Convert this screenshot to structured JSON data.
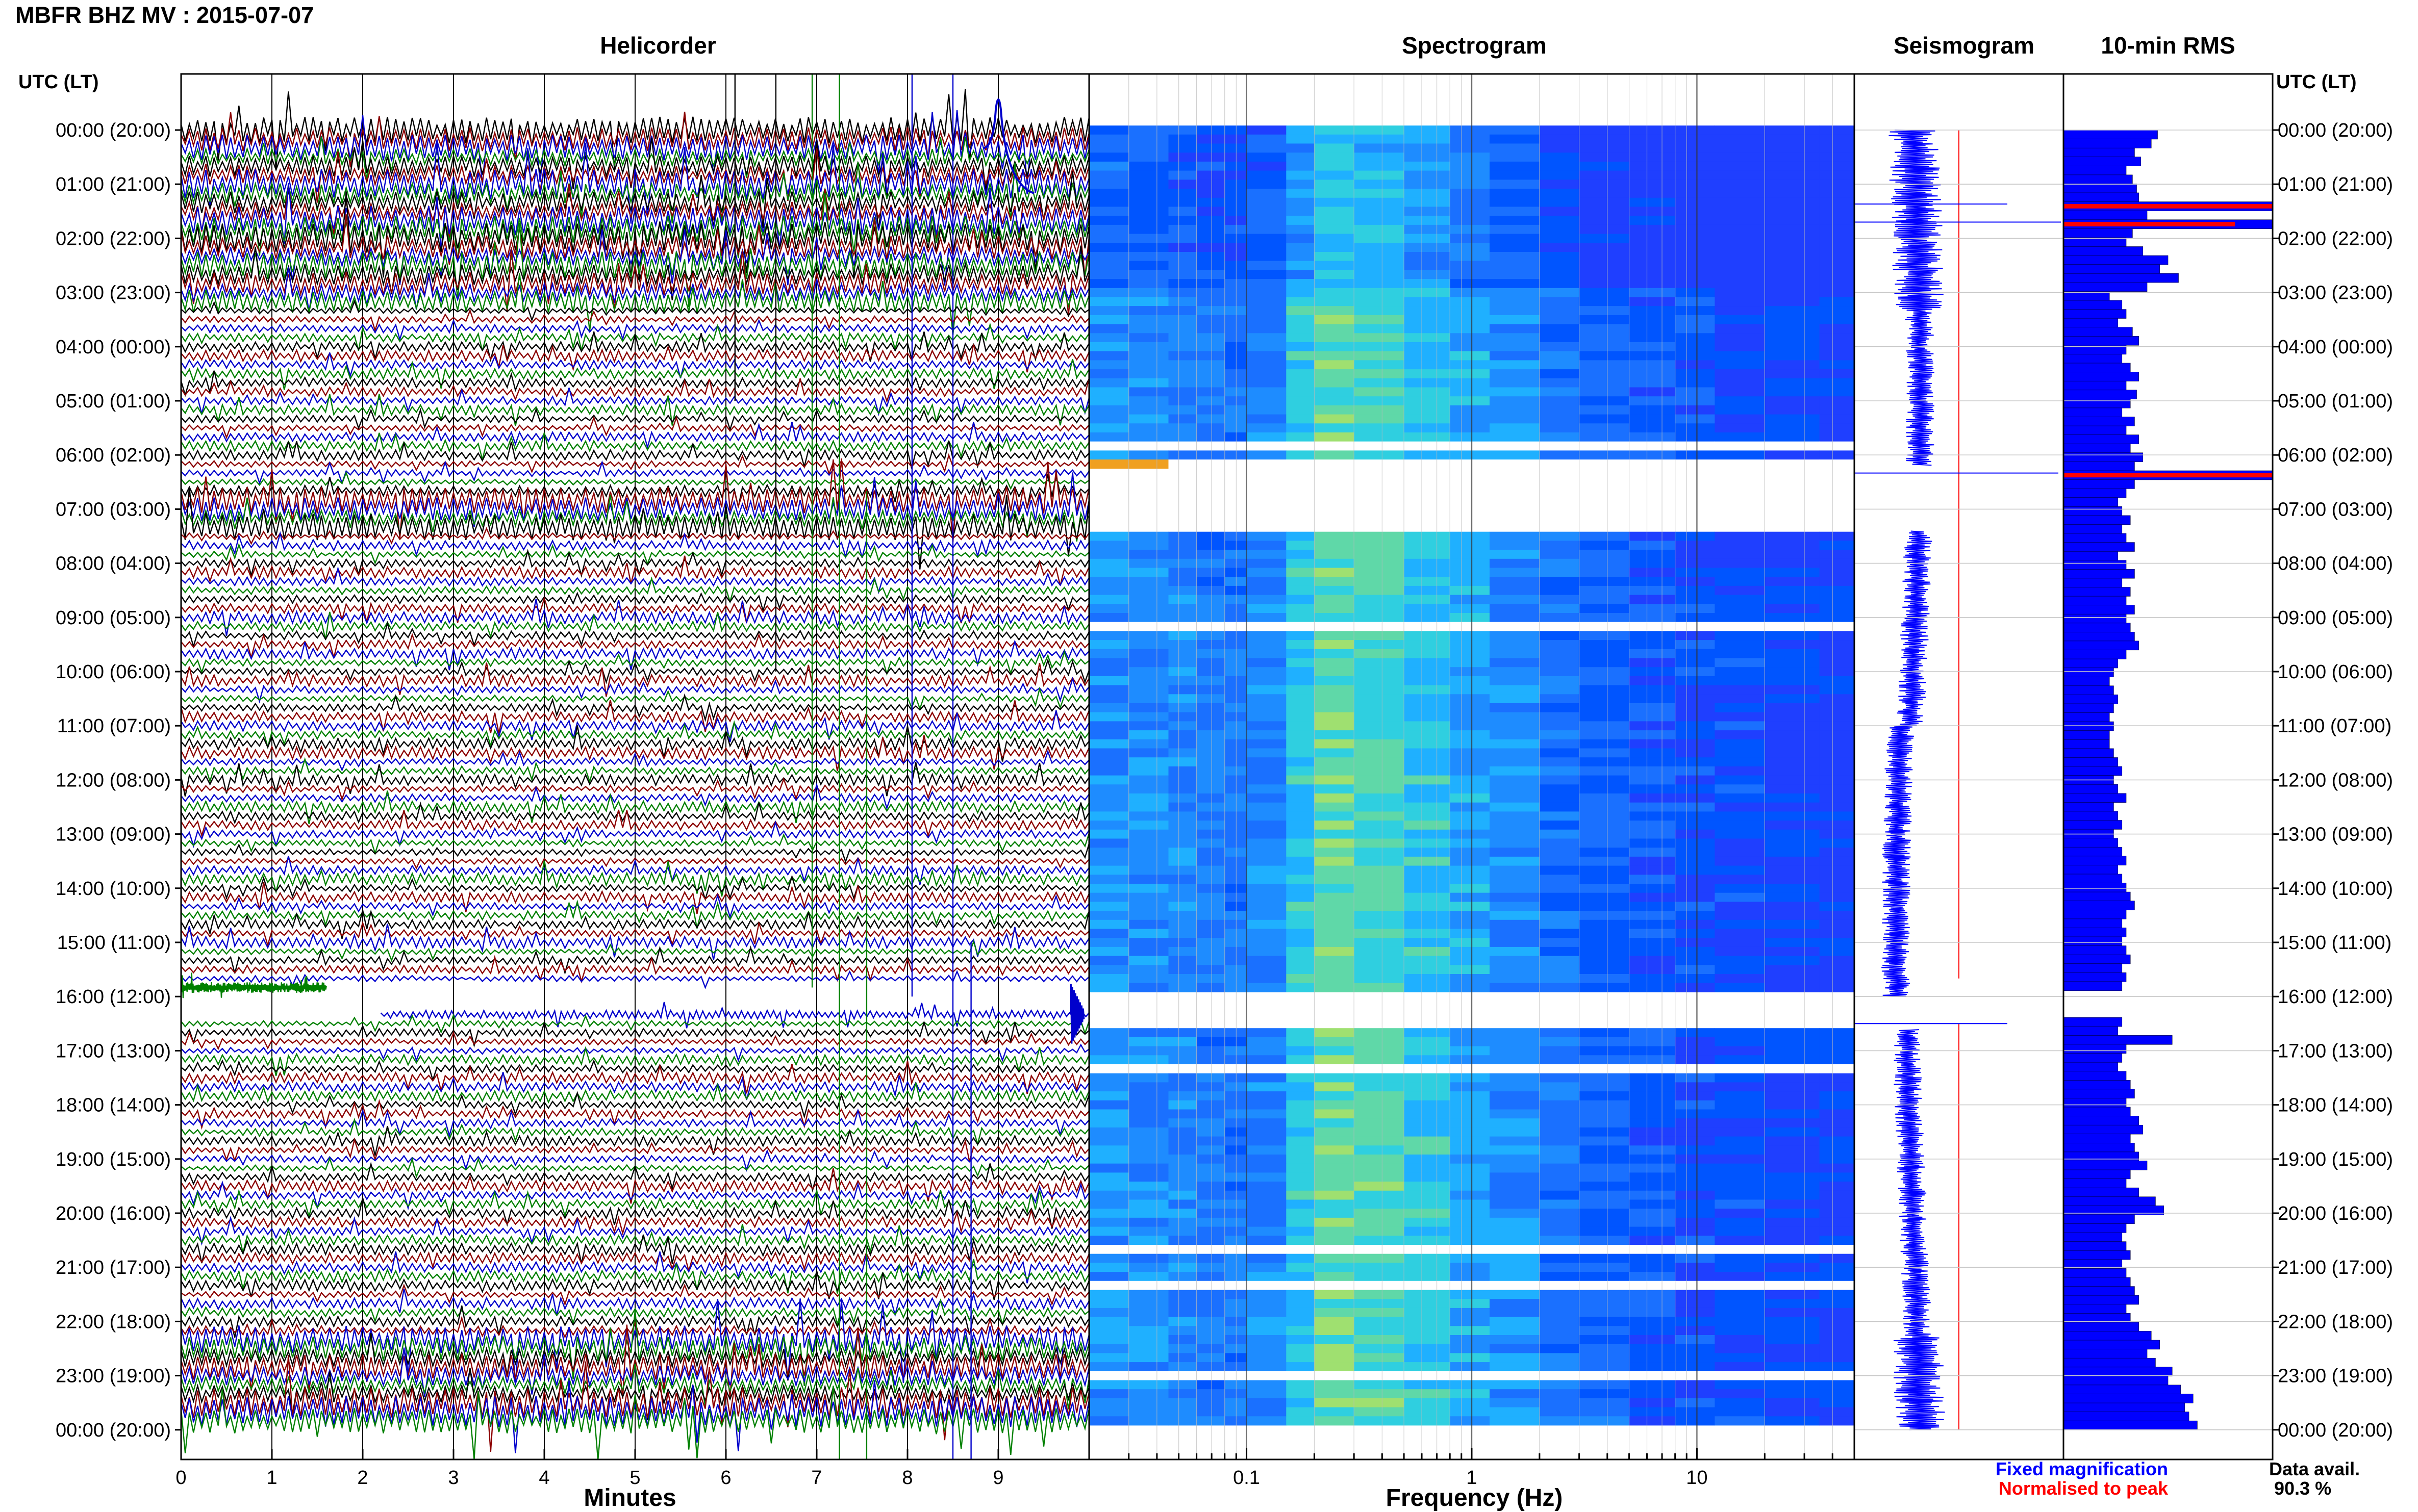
{
  "title": "MBFR BHZ MV : 2015-07-07",
  "panels": {
    "helicorder": "Helicorder",
    "spectrogram": "Spectrogram",
    "seismogram": "Seismogram",
    "rms": "10-min RMS"
  },
  "utc_header_left": "UTC (LT)",
  "utc_header_right": "UTC (LT)",
  "x_label_helicorder": "Minutes",
  "x_label_spectrogram": "Frequency (Hz)",
  "legend": {
    "fixed": "Fixed magnification",
    "normalised": "Normalised to peak",
    "fixed_color": "#0000ff",
    "normalised_color": "#ff0000"
  },
  "data_avail_label": "Data avail.",
  "data_avail_value": "90.3 %",
  "colors": {
    "trace_colors": [
      "#000000",
      "#8b0000",
      "#0000cc",
      "#008000"
    ],
    "rms_bar": "#0000ff",
    "rms_bar_peak": "#ff0000"
  },
  "chart_data": [
    {
      "type": "line",
      "title": "Helicorder",
      "xlabel": "Minutes",
      "x_ticks": [
        "0",
        "1",
        "2",
        "3",
        "4",
        "5",
        "6",
        "7",
        "8",
        "9"
      ],
      "xlim": [
        0,
        10
      ],
      "row_minutes": 10,
      "gap_rows": [
        [
          96,
          97
        ]
      ],
      "y_ticks": [
        "00:00 (20:00)",
        "01:00 (21:00)",
        "02:00 (22:00)",
        "03:00 (23:00)",
        "04:00 (00:00)",
        "05:00 (01:00)",
        "06:00 (02:00)",
        "07:00 (03:00)",
        "08:00 (04:00)",
        "09:00 (05:00)",
        "10:00 (06:00)",
        "11:00 (07:00)",
        "12:00 (08:00)",
        "13:00 (09:00)",
        "14:00 (10:00)",
        "15:00 (11:00)",
        "16:00 (12:00)",
        "17:00 (13:00)",
        "18:00 (14:00)",
        "19:00 (15:00)",
        "20:00 (16:00)",
        "21:00 (17:00)",
        "22:00 (18:00)",
        "23:00 (19:00)",
        "00:00 (20:00)"
      ]
    },
    {
      "type": "heatmap",
      "title": "Spectrogram",
      "xlabel": "Frequency (Hz)",
      "x_scale": "log",
      "x_ticks": [
        "0.1",
        "1",
        "10"
      ],
      "xlim": [
        0.02,
        50
      ],
      "gaps_utc_hours": [
        [
          6.2,
          7.4
        ],
        [
          16.0,
          16.6
        ]
      ]
    },
    {
      "type": "line",
      "title": "Seismogram",
      "series": [
        {
          "name": "Fixed magnification"
        },
        {
          "name": "Normalised to peak"
        }
      ]
    },
    {
      "type": "bar",
      "title": "10-min RMS",
      "orientation": "horizontal",
      "bin_minutes": 10,
      "values": [
        0.45,
        0.42,
        0.34,
        0.37,
        0.3,
        0.33,
        0.35,
        0.36,
        1.0,
        0.4,
        1.0,
        0.33,
        0.3,
        0.38,
        0.5,
        0.46,
        0.55,
        0.4,
        0.22,
        0.28,
        0.3,
        0.26,
        0.33,
        0.36,
        0.3,
        0.28,
        0.32,
        0.36,
        0.3,
        0.35,
        0.32,
        0.28,
        0.34,
        0.3,
        0.36,
        0.32,
        0.38,
        0.34,
        1.0,
        0.34,
        0.3,
        0.26,
        0.28,
        0.32,
        0.28,
        0.3,
        0.34,
        0.26,
        0.3,
        0.34,
        0.28,
        0.32,
        0.3,
        0.34,
        0.3,
        0.32,
        0.34,
        0.36,
        0.3,
        0.26,
        0.24,
        0.22,
        0.24,
        0.26,
        0.24,
        0.22,
        0.24,
        0.22,
        0.22,
        0.24,
        0.26,
        0.28,
        0.24,
        0.26,
        0.3,
        0.24,
        0.26,
        0.28,
        0.24,
        0.26,
        0.28,
        0.3,
        0.26,
        0.28,
        0.3,
        0.32,
        0.34,
        0.3,
        0.28,
        0.3,
        0.28,
        0.3,
        0.32,
        0.28,
        0.3,
        0.28,
        0,
        0,
        0,
        0.28,
        0.26,
        0.52,
        0.3,
        0.28,
        0.26,
        0.3,
        0.32,
        0.34,
        0.3,
        0.32,
        0.36,
        0.38,
        0.32,
        0.34,
        0.36,
        0.4,
        0.32,
        0.3,
        0.36,
        0.44,
        0.48,
        0.34,
        0.3,
        0.28,
        0.3,
        0.32,
        0.28,
        0.3,
        0.32,
        0.34,
        0.36,
        0.3,
        0.32,
        0.36,
        0.42,
        0.46,
        0.4,
        0.44,
        0.52,
        0.5,
        0.56,
        0.62,
        0.58,
        0.6,
        0.64
      ],
      "peak_rows": [
        8,
        10,
        38
      ]
    }
  ]
}
